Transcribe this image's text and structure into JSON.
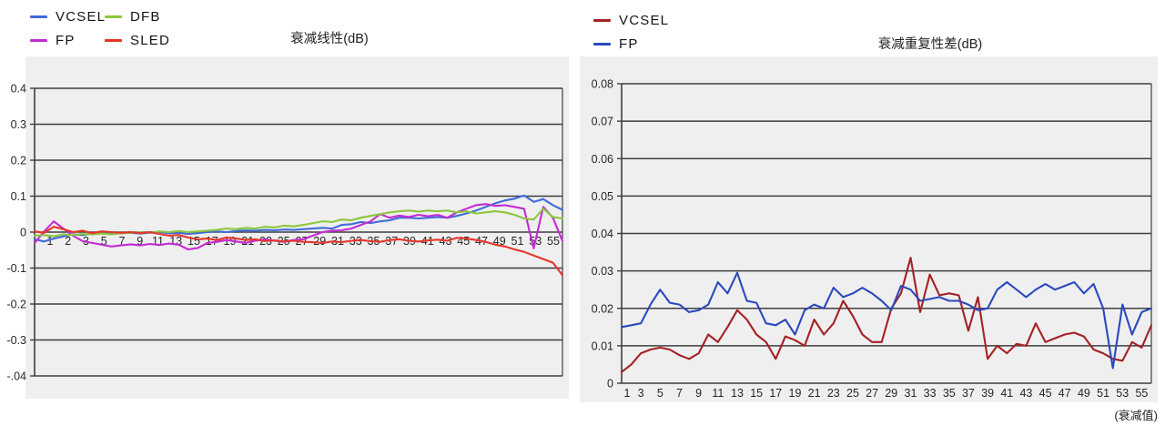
{
  "page": {
    "footnote": "(衰减值)",
    "colors": {
      "panel_bg": "#EFEFEF",
      "grid": "#3F3F3F",
      "tick_text": "#262626"
    }
  },
  "charts": [
    {
      "legend": [
        {
          "label": "VCSEL",
          "color": "#3F6BD9"
        },
        {
          "label": "DFB",
          "color": "#8DC63F"
        },
        {
          "label": "FP",
          "color": "#C52BD4"
        },
        {
          "label": "SLED",
          "color": "#E6352B"
        }
      ],
      "chart_data": {
        "type": "line",
        "title": "衰减线性(dB)",
        "ylim": [
          -0.4,
          0.4
        ],
        "yticks": [
          {
            "label": "0.4",
            "v": 0.4
          },
          {
            "label": "0.3",
            "v": 0.3
          },
          {
            "label": "0.2",
            "v": 0.2
          },
          {
            "label": "0.1",
            "v": 0.1
          },
          {
            "label": "0",
            "v": 0
          },
          {
            "label": "-0.1",
            "v": -0.1
          },
          {
            "label": "-0.2",
            "v": -0.2
          },
          {
            "label": "-0.3",
            "v": -0.3
          },
          {
            "label": "-.04",
            "v": -0.4
          }
        ],
        "xticklabels": [
          "1",
          "2",
          "3",
          "5",
          "7",
          "9",
          "11",
          "13",
          "15",
          "17",
          "19",
          "21",
          "23",
          "25",
          "27",
          "29",
          "31",
          "33",
          "35",
          "37",
          "39",
          "41",
          "43",
          "45",
          "47",
          "49",
          "51",
          "53",
          "55"
        ],
        "xlabel_mode": "at-zero",
        "grid": true,
        "legend_position": "top-left",
        "series": [
          {
            "name": "VCSEL",
            "color": "#3F6BD9",
            "values": [
              -0.02,
              -0.026,
              -0.018,
              -0.012,
              -0.006,
              -0.008,
              -0.004,
              -0.003,
              -0.005,
              -0.003,
              -0.002,
              -0.004,
              -0.002,
              0.0,
              -0.003,
              -0.002,
              -0.005,
              -0.003,
              0.0,
              0.002,
              0.0,
              0.003,
              0.005,
              0.004,
              0.006,
              0.005,
              0.007,
              0.006,
              0.008,
              0.01,
              0.012,
              0.01,
              0.02,
              0.022,
              0.028,
              0.025,
              0.03,
              0.033,
              0.04,
              0.04,
              0.038,
              0.04,
              0.042,
              0.04,
              0.045,
              0.052,
              0.06,
              0.07,
              0.08,
              0.088,
              0.093,
              0.102,
              0.084,
              0.092,
              0.075,
              0.062
            ]
          },
          {
            "name": "FP",
            "color": "#C52BD4",
            "values": [
              -0.03,
              0.002,
              0.03,
              0.01,
              -0.01,
              -0.025,
              -0.03,
              -0.035,
              -0.04,
              -0.037,
              -0.034,
              -0.037,
              -0.033,
              -0.036,
              -0.032,
              -0.035,
              -0.048,
              -0.044,
              -0.03,
              -0.027,
              -0.022,
              -0.026,
              -0.03,
              -0.024,
              -0.02,
              -0.024,
              -0.027,
              -0.022,
              -0.02,
              -0.01,
              0.0,
              0.004,
              0.005,
              0.01,
              0.02,
              0.03,
              0.05,
              0.04,
              0.046,
              0.042,
              0.048,
              0.044,
              0.048,
              0.04,
              0.055,
              0.065,
              0.075,
              0.078,
              0.073,
              0.075,
              0.07,
              0.065,
              -0.045,
              0.07,
              0.04,
              -0.025
            ]
          },
          {
            "name": "DFB",
            "color": "#8DC63F",
            "values": [
              -0.01,
              -0.008,
              -0.012,
              -0.006,
              -0.008,
              -0.005,
              -0.006,
              -0.004,
              -0.006,
              -0.003,
              -0.002,
              0.0,
              -0.002,
              0.002,
              0.0,
              0.003,
              0.0,
              0.002,
              0.004,
              0.006,
              0.01,
              0.008,
              0.012,
              0.01,
              0.015,
              0.013,
              0.018,
              0.016,
              0.02,
              0.025,
              0.03,
              0.028,
              0.035,
              0.033,
              0.04,
              0.045,
              0.05,
              0.055,
              0.058,
              0.06,
              0.057,
              0.06,
              0.058,
              0.06,
              0.055,
              0.058,
              0.052,
              0.055,
              0.058,
              0.055,
              0.048,
              0.038,
              0.035,
              0.065,
              0.042,
              0.038
            ]
          },
          {
            "name": "SLED",
            "color": "#E6352B",
            "values": [
              0.002,
              -0.002,
              0.015,
              0.008,
              0.0,
              0.004,
              -0.003,
              0.002,
              0.0,
              -0.002,
              0.0,
              -0.003,
              0.0,
              -0.005,
              -0.01,
              -0.008,
              -0.015,
              -0.02,
              -0.018,
              -0.022,
              -0.015,
              -0.018,
              -0.022,
              -0.02,
              -0.025,
              -0.023,
              -0.026,
              -0.024,
              -0.027,
              -0.028,
              -0.03,
              -0.026,
              -0.028,
              -0.024,
              -0.022,
              -0.025,
              -0.027,
              -0.022,
              -0.02,
              -0.024,
              -0.026,
              -0.023,
              -0.021,
              -0.024,
              -0.016,
              -0.018,
              -0.022,
              -0.027,
              -0.035,
              -0.04,
              -0.048,
              -0.055,
              -0.065,
              -0.075,
              -0.085,
              -0.12
            ]
          }
        ]
      }
    },
    {
      "legend": [
        {
          "label": "VCSEL",
          "color": "#A42125"
        },
        {
          "label": "FP",
          "color": "#2B49BD"
        }
      ],
      "chart_data": {
        "type": "line",
        "title": "衰减重复性差(dB)",
        "ylim": [
          0,
          0.08
        ],
        "yticks": [
          {
            "label": "0.08",
            "v": 0.08
          },
          {
            "label": "0.07",
            "v": 0.07
          },
          {
            "label": "0.06",
            "v": 0.06
          },
          {
            "label": "0.05",
            "v": 0.05
          },
          {
            "label": "0.04",
            "v": 0.04
          },
          {
            "label": "0.03",
            "v": 0.03
          },
          {
            "label": "0.02",
            "v": 0.02
          },
          {
            "label": "0.01",
            "v": 0.01
          },
          {
            "label": "0",
            "v": 0
          }
        ],
        "xticklabels": [
          "1",
          "3",
          "5",
          "7",
          "9",
          "11",
          "13",
          "15",
          "17",
          "19",
          "21",
          "23",
          "25",
          "27",
          "29",
          "31",
          "33",
          "35",
          "37",
          "39",
          "41",
          "43",
          "45",
          "47",
          "49",
          "51",
          "53",
          "55"
        ],
        "xlabel_mode": "bottom",
        "grid": true,
        "legend_position": "top-left",
        "series": [
          {
            "name": "VCSEL",
            "color": "#A42125",
            "values": [
              0.003,
              0.005,
              0.008,
              0.009,
              0.0095,
              0.009,
              0.0075,
              0.0065,
              0.008,
              0.013,
              0.011,
              0.015,
              0.0195,
              0.017,
              0.013,
              0.011,
              0.0065,
              0.0125,
              0.0115,
              0.01,
              0.017,
              0.013,
              0.016,
              0.022,
              0.018,
              0.013,
              0.011,
              0.011,
              0.02,
              0.024,
              0.0335,
              0.019,
              0.029,
              0.0235,
              0.024,
              0.0235,
              0.014,
              0.023,
              0.0065,
              0.01,
              0.008,
              0.0105,
              0.01,
              0.016,
              0.011,
              0.012,
              0.013,
              0.0135,
              0.0125,
              0.009,
              0.008,
              0.0065,
              0.006,
              0.011,
              0.0095,
              0.0155
            ]
          },
          {
            "name": "FP",
            "color": "#2B49BD",
            "values": [
              0.015,
              0.0155,
              0.016,
              0.021,
              0.025,
              0.0215,
              0.021,
              0.019,
              0.0195,
              0.021,
              0.027,
              0.024,
              0.0295,
              0.022,
              0.0215,
              0.016,
              0.0155,
              0.017,
              0.013,
              0.0195,
              0.021,
              0.02,
              0.0255,
              0.023,
              0.024,
              0.0255,
              0.024,
              0.022,
              0.0195,
              0.026,
              0.025,
              0.022,
              0.0225,
              0.023,
              0.022,
              0.022,
              0.021,
              0.0195,
              0.02,
              0.025,
              0.027,
              0.025,
              0.023,
              0.025,
              0.0265,
              0.025,
              0.026,
              0.027,
              0.024,
              0.0265,
              0.02,
              0.004,
              0.021,
              0.013,
              0.019,
              0.02
            ]
          }
        ]
      }
    }
  ]
}
